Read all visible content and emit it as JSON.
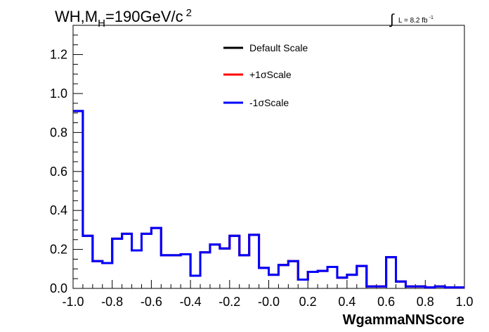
{
  "chart_data": {
    "type": "line",
    "title": {
      "main": "WH,M",
      "sub": "H",
      "rest": "=190GeV/c",
      "sup": "2"
    },
    "lumi": {
      "integral": "∫",
      "text": "L = 8.2 fb",
      "exp": "-1"
    },
    "xlabel": "WgammaNNScore",
    "ylabel": "",
    "xlim": [
      -1.0,
      1.0
    ],
    "ylim": [
      0.0,
      1.35
    ],
    "x_ticks": [
      "-1.0",
      "-0.8",
      "-0.6",
      "-0.4",
      "-0.2",
      "-0.0",
      "0.2",
      "0.4",
      "0.6",
      "0.8",
      "1.0"
    ],
    "y_ticks": [
      "0.0",
      "0.2",
      "0.4",
      "0.6",
      "0.8",
      "1.0",
      "1.2"
    ],
    "legend": {
      "position": "top-center",
      "entries": [
        {
          "label": "Default Scale",
          "color": "#000000"
        },
        {
          "label": "+1σScale",
          "color": "#ff0000"
        },
        {
          "label": "-1σScale",
          "color": "#0000ff"
        }
      ]
    },
    "bin_edges": [
      -1.0,
      -0.95,
      -0.9,
      -0.85,
      -0.8,
      -0.75,
      -0.7,
      -0.65,
      -0.6,
      -0.55,
      -0.5,
      -0.45,
      -0.4,
      -0.35,
      -0.3,
      -0.25,
      -0.2,
      -0.15,
      -0.1,
      -0.05,
      0.0,
      0.05,
      0.1,
      0.15,
      0.2,
      0.25,
      0.3,
      0.35,
      0.4,
      0.45,
      0.5,
      0.55,
      0.6,
      0.65,
      0.7,
      0.75,
      0.8,
      0.85,
      0.9,
      0.95,
      1.0
    ],
    "series": [
      {
        "name": "Default Scale",
        "color": "#000000",
        "values": [
          0.91,
          0.27,
          0.14,
          0.13,
          0.255,
          0.28,
          0.195,
          0.28,
          0.31,
          0.17,
          0.17,
          0.175,
          0.065,
          0.185,
          0.225,
          0.205,
          0.27,
          0.17,
          0.275,
          0.105,
          0.07,
          0.12,
          0.14,
          0.045,
          0.085,
          0.09,
          0.11,
          0.055,
          0.07,
          0.115,
          0.01,
          0.01,
          0.16,
          0.035,
          0.01,
          0.01,
          0.005,
          0.01,
          0.005,
          0.005
        ]
      },
      {
        "name": "+1σScale",
        "color": "#ff0000",
        "values": [
          0.91,
          0.27,
          0.14,
          0.13,
          0.255,
          0.28,
          0.195,
          0.28,
          0.31,
          0.17,
          0.17,
          0.175,
          0.065,
          0.185,
          0.225,
          0.205,
          0.27,
          0.17,
          0.275,
          0.105,
          0.07,
          0.12,
          0.14,
          0.045,
          0.085,
          0.09,
          0.11,
          0.055,
          0.07,
          0.115,
          0.01,
          0.01,
          0.16,
          0.035,
          0.01,
          0.01,
          0.005,
          0.01,
          0.005,
          0.005
        ]
      },
      {
        "name": "-1σScale",
        "color": "#0000ff",
        "values": [
          0.91,
          0.27,
          0.14,
          0.13,
          0.255,
          0.28,
          0.195,
          0.28,
          0.31,
          0.17,
          0.17,
          0.175,
          0.065,
          0.185,
          0.225,
          0.205,
          0.27,
          0.17,
          0.275,
          0.105,
          0.07,
          0.12,
          0.14,
          0.045,
          0.085,
          0.09,
          0.11,
          0.055,
          0.07,
          0.115,
          0.01,
          0.01,
          0.16,
          0.035,
          0.01,
          0.01,
          0.005,
          0.01,
          0.005,
          0.005
        ]
      }
    ]
  }
}
